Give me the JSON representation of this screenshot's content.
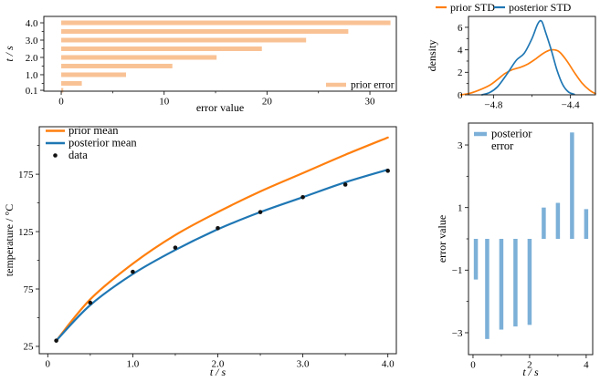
{
  "figure": {
    "background": "#ffffff",
    "colors": {
      "prior_line": "#ff7f0e",
      "posterior_line": "#1f77b4",
      "prior_bar_fill": "#f9c295",
      "posterior_bar_fill": "#7cb0d8",
      "data_marker": "#111111",
      "axis": "#1a1a1a"
    }
  },
  "chart_data": [
    {
      "id": "prior-error-bars",
      "type": "barh",
      "xlabel": "error value",
      "ylabel": "t / s",
      "color_key": "prior_bar_fill",
      "y": [
        0.1,
        0.5,
        1.0,
        1.5,
        2.0,
        2.5,
        3.0,
        3.5,
        4.0
      ],
      "values": [
        0.2,
        2.0,
        6.3,
        10.8,
        15.1,
        19.5,
        23.8,
        27.9,
        32.0
      ],
      "xlim": [
        -1.69,
        32.57
      ],
      "ylim": [
        0.05,
        4.37
      ],
      "xticks": {
        "major": [
          0,
          10,
          20,
          30
        ],
        "minor": [
          5,
          15,
          25
        ],
        "labels": [
          "0",
          "10",
          "20",
          "30"
        ]
      },
      "yticks": {
        "major": [
          0.1,
          1,
          2,
          3,
          4
        ],
        "minor": [
          0.5,
          1.5,
          2.5,
          3.5
        ],
        "labels": [
          "0.1",
          "1.0",
          "2.0",
          "3.0",
          "4.0"
        ]
      },
      "legend": [
        {
          "label": "prior error",
          "color_key": "prior_bar_fill"
        }
      ],
      "legend_position": "lower right"
    },
    {
      "id": "std-density",
      "type": "line",
      "ylabel": "density",
      "series": [
        {
          "name": "prior STD",
          "color_key": "prior_line",
          "smooth": true,
          "x": [
            -4.97,
            -4.92,
            -4.87,
            -4.82,
            -4.78,
            -4.74,
            -4.7,
            -4.66,
            -4.62,
            -4.58,
            -4.54,
            -4.5,
            -4.46,
            -4.42,
            -4.38,
            -4.34,
            -4.3,
            -4.27
          ],
          "y": [
            0,
            0.15,
            0.45,
            0.85,
            1.35,
            1.9,
            2.25,
            2.45,
            2.75,
            3.2,
            3.7,
            4.0,
            3.85,
            3.05,
            2.0,
            1.05,
            0.4,
            0.1
          ]
        },
        {
          "name": "posterior STD",
          "color_key": "posterior_line",
          "smooth": true,
          "x": [
            -4.86,
            -4.82,
            -4.78,
            -4.74,
            -4.72,
            -4.68,
            -4.64,
            -4.6,
            -4.57,
            -4.55,
            -4.53,
            -4.5,
            -4.47,
            -4.44,
            -4.41,
            -4.38
          ],
          "y": [
            0,
            0.2,
            0.7,
            1.6,
            2.1,
            3.1,
            3.7,
            5.0,
            6.3,
            6.55,
            5.6,
            4.0,
            2.2,
            0.9,
            0.25,
            0.05
          ]
        }
      ],
      "xlim": [
        -4.93,
        -4.27
      ],
      "ylim": [
        0,
        6.97
      ],
      "xticks": {
        "major": [
          -4.8,
          -4.4
        ],
        "minor": [
          -4.6
        ],
        "labels": [
          "−4.8",
          "−4.4"
        ]
      },
      "yticks": {
        "major": [
          0,
          2,
          4,
          6
        ],
        "minor": [
          1,
          3,
          5
        ],
        "labels": [
          "0",
          "2",
          "4",
          "6"
        ]
      },
      "legend": [
        {
          "label": "prior STD",
          "color_key": "prior_line"
        },
        {
          "label": "posterior STD",
          "color_key": "posterior_line"
        }
      ],
      "legend_position": "above"
    },
    {
      "id": "temperature-means",
      "type": "line-scatter",
      "xlabel": "t / s",
      "ylabel": "temperature / °C",
      "x": [
        0.1,
        0.5,
        1.0,
        1.5,
        2.0,
        2.5,
        3.0,
        3.5,
        4.0
      ],
      "series": [
        {
          "name": "prior mean",
          "color_key": "prior_line",
          "smooth": true,
          "y": [
            30,
            66,
            97,
            122,
            142,
            160,
            176,
            192,
            207
          ]
        },
        {
          "name": "posterior mean",
          "color_key": "posterior_line",
          "smooth": true,
          "y": [
            30,
            61,
            88,
            109,
            127,
            142,
            155,
            168,
            179
          ]
        }
      ],
      "scatter": {
        "name": "data",
        "color_key": "data_marker",
        "y": [
          30,
          63,
          90,
          111,
          128,
          142,
          155,
          166,
          178
        ]
      },
      "xlim": [
        -0.1,
        4.1
      ],
      "ylim": [
        18.6,
        216.4
      ],
      "xticks": {
        "major": [
          0,
          1,
          2,
          3,
          4
        ],
        "minor": [
          0.5,
          1.5,
          2.5,
          3.5
        ],
        "labels": [
          "0",
          "1.0",
          "2.0",
          "3.0",
          "4.0"
        ]
      },
      "yticks": {
        "major": [
          25,
          75,
          125,
          175
        ],
        "minor": [
          50,
          100,
          150,
          200
        ],
        "labels": [
          "25",
          "75",
          "125",
          "175"
        ]
      },
      "legend": [
        {
          "label": "prior mean",
          "color_key": "prior_line",
          "swatch": "line"
        },
        {
          "label": "posterior mean",
          "color_key": "posterior_line",
          "swatch": "line"
        },
        {
          "label": "data",
          "color_key": "data_marker",
          "swatch": "dot"
        }
      ],
      "legend_position": "upper left"
    },
    {
      "id": "posterior-error-bars",
      "type": "bar",
      "xlabel": "t / s",
      "ylabel": "error value",
      "color_key": "posterior_bar_fill",
      "x": [
        0.1,
        0.5,
        1.0,
        1.5,
        2.0,
        2.5,
        3.0,
        3.5,
        4.0
      ],
      "values": [
        -1.3,
        -3.2,
        -2.9,
        -2.8,
        -2.75,
        1.0,
        1.15,
        3.4,
        0.95
      ],
      "xlim": [
        -0.16,
        4.23
      ],
      "ylim": [
        -3.7,
        3.7
      ],
      "xticks": {
        "major": [
          0,
          2,
          4
        ],
        "minor": [
          1,
          3
        ],
        "labels": [
          "0",
          "2",
          "4"
        ]
      },
      "yticks": {
        "major": [
          -3,
          -1,
          1,
          3
        ],
        "minor": [
          -2,
          0,
          2
        ],
        "labels": [
          "−3",
          "−1",
          "1",
          "3"
        ]
      },
      "legend": [
        {
          "label_lines": [
            "posterior",
            "error"
          ],
          "color_key": "posterior_bar_fill"
        }
      ],
      "legend_position": "upper left"
    }
  ]
}
